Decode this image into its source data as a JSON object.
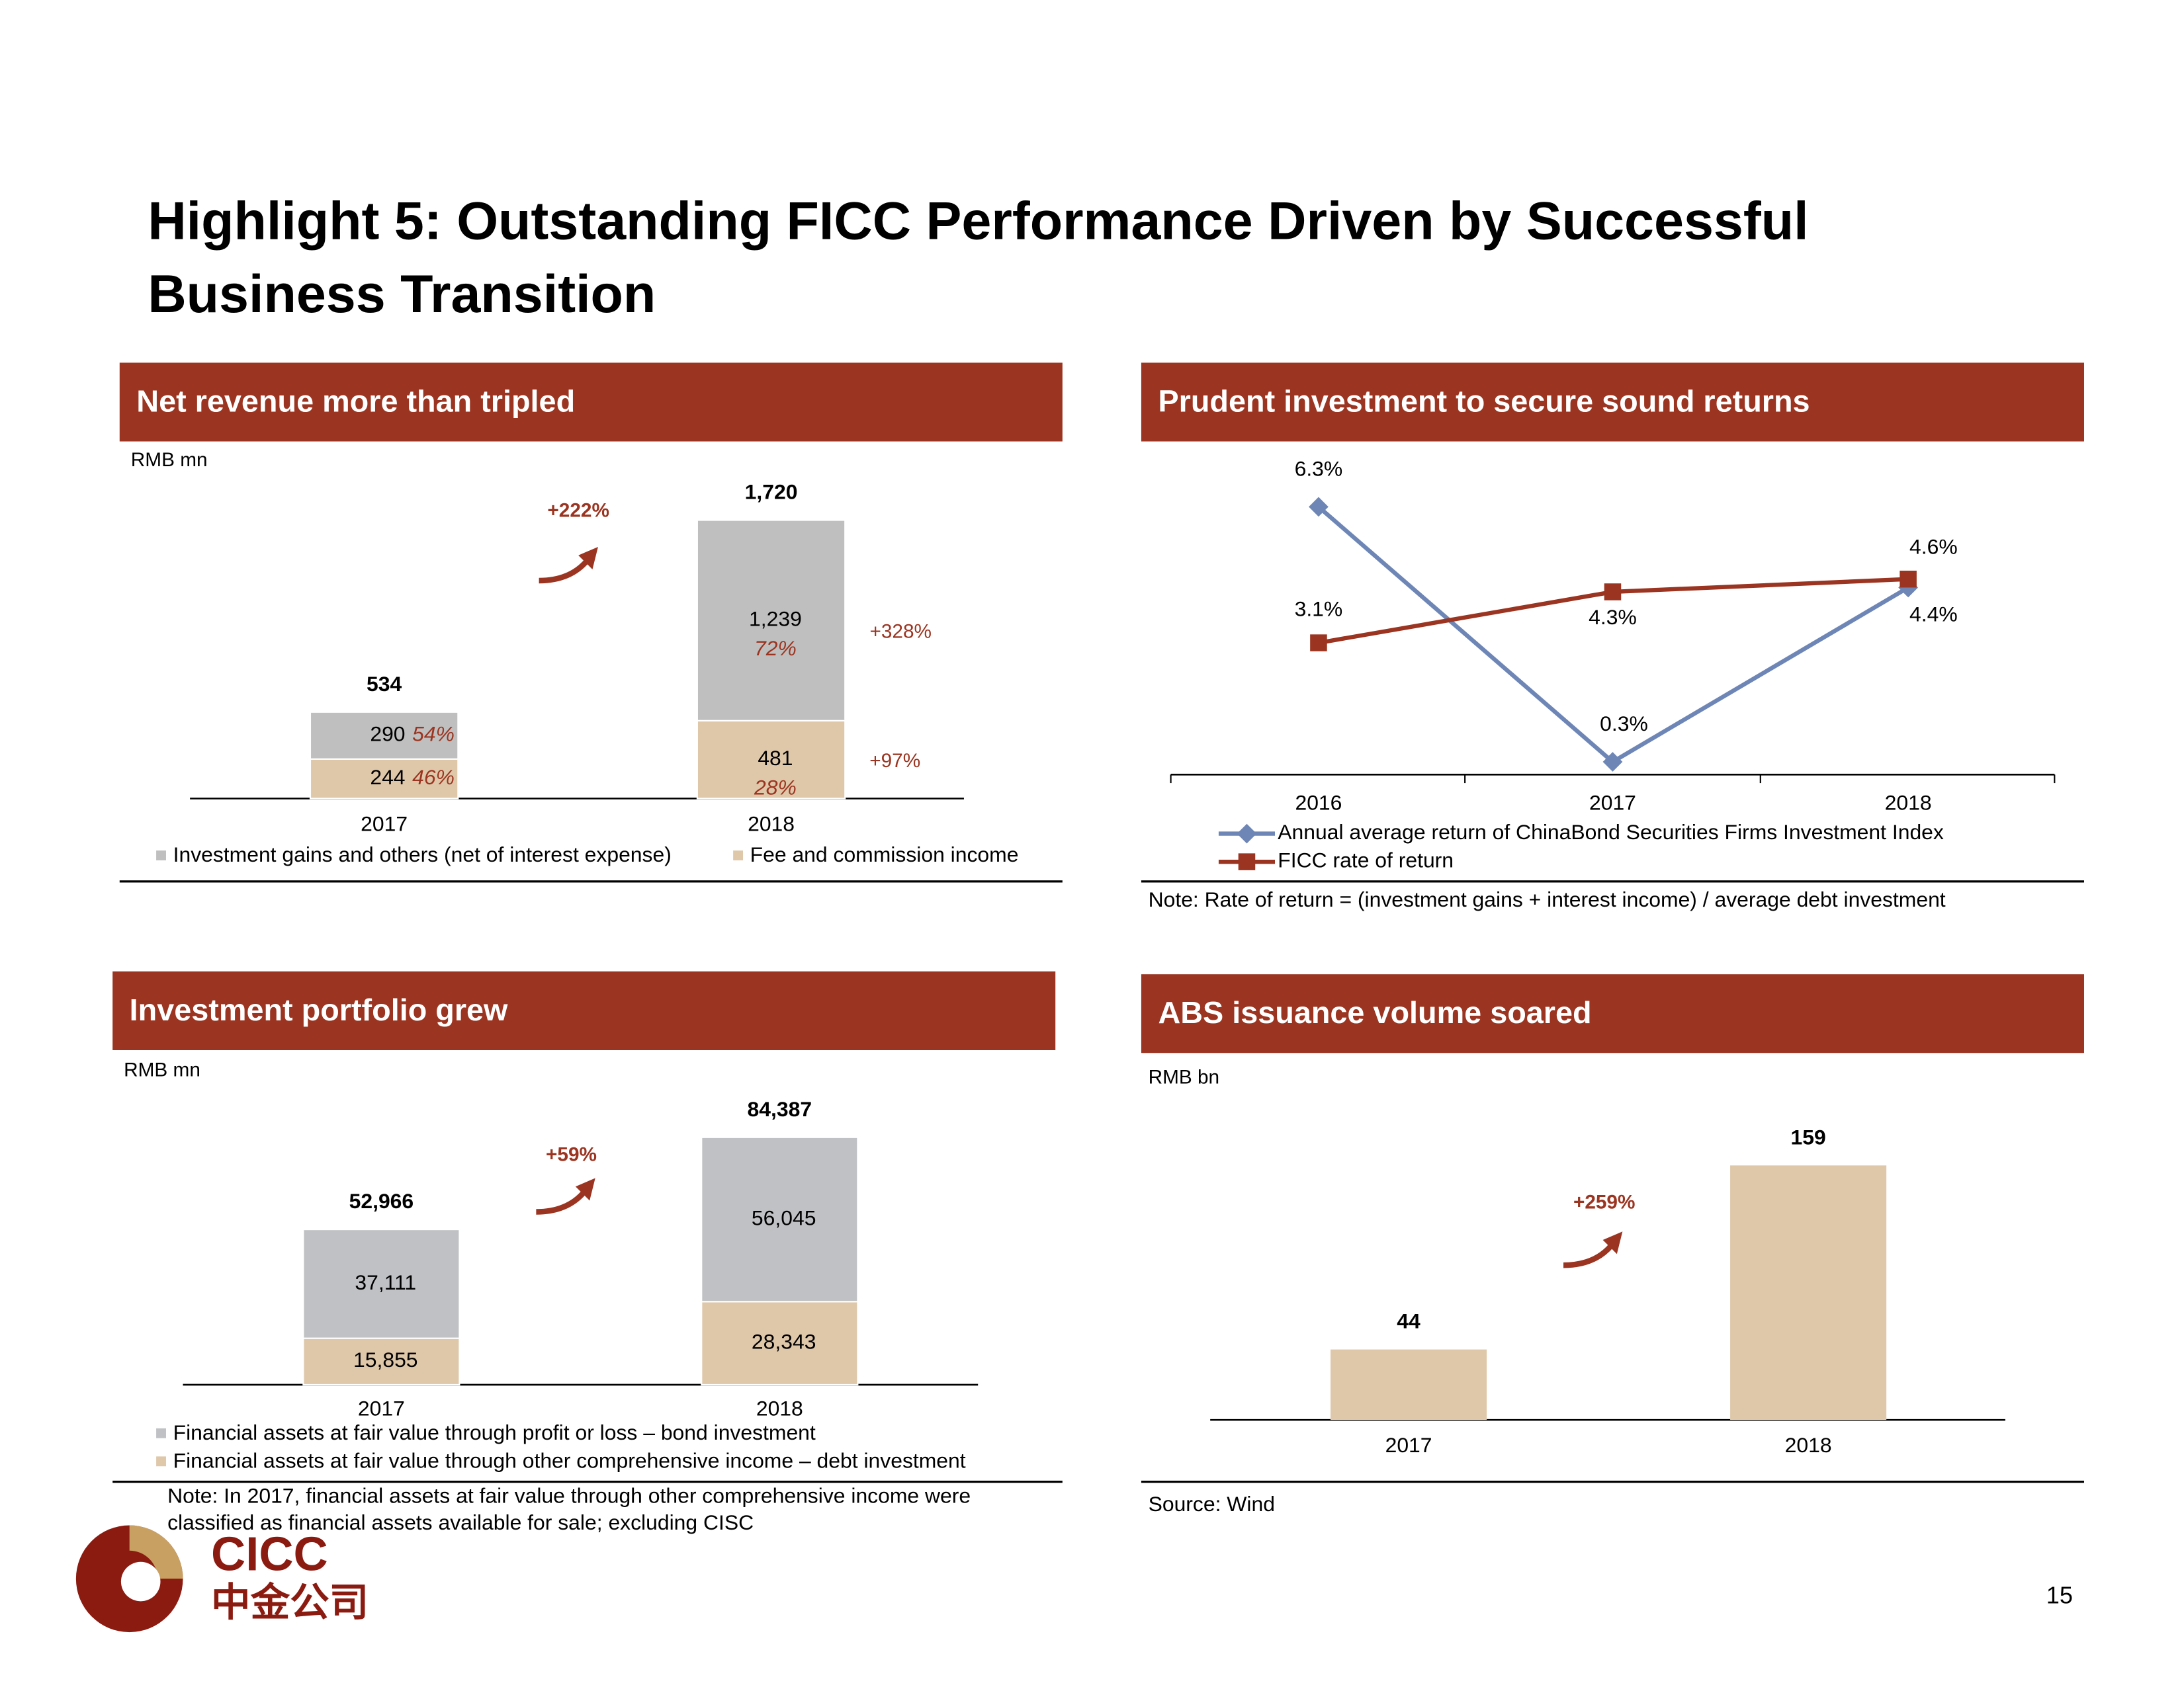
{
  "title": [
    "Highlight 5: Outstanding FICC Performance Driven by Successful",
    "Business Transition"
  ],
  "page_number": "15",
  "logo": {
    "name": "CICC",
    "chinese_name": "中金公司"
  },
  "chart_data": [
    {
      "type": "stacked_bar",
      "title": "Net revenue more than tripled",
      "unit": "RMB mn",
      "categories": [
        "2017",
        "2018"
      ],
      "series": [
        {
          "name": "Investment gains and others (net of interest expense)",
          "color": "#bfbfbf",
          "values": [
            290,
            1239
          ],
          "value_labels": [
            "290",
            "1,239"
          ],
          "share_labels": [
            "54%",
            "72%"
          ]
        },
        {
          "name": "Fee and commission income",
          "color": "#dfc8aa",
          "values": [
            244,
            481
          ],
          "share_labels": [
            "46%",
            "28%"
          ]
        }
      ],
      "totals": [
        534,
        1720
      ],
      "total_labels": [
        "534",
        "1,720"
      ],
      "annotations": [
        "+222%",
        "+328%",
        "+97%"
      ]
    },
    {
      "type": "line",
      "title": "Prudent investment to secure sound returns",
      "categories": [
        "2016",
        "2017",
        "2018"
      ],
      "series": [
        {
          "name": "Annual average return of ChinaBond Securities Firms Investment Index",
          "color": "#6d86b6",
          "marker": "diamond",
          "values": [
            6.3,
            0.3,
            4.4
          ],
          "value_labels": [
            "6.3%",
            "0.3%",
            "4.4%"
          ]
        },
        {
          "name": "FICC rate of return",
          "color": "#9b3420",
          "marker": "square",
          "values": [
            3.1,
            4.3,
            4.6
          ],
          "value_labels": [
            "3.1%",
            "4.3%",
            "4.6%"
          ]
        }
      ],
      "note": "Note: Rate of return = (investment gains + interest income) / average debt investment"
    },
    {
      "type": "stacked_bar",
      "title": "Investment portfolio grew",
      "unit": "RMB mn",
      "categories": [
        "2017",
        "2018"
      ],
      "series": [
        {
          "name": "Financial assets at fair value through profit or loss  – bond investment",
          "color": "#bfc1c4",
          "values": [
            37111,
            56045
          ],
          "value_labels": [
            "37,111",
            "56,045"
          ]
        },
        {
          "name": "Financial assets at fair value through other comprehensive income – debt investment",
          "color": "#dfc8aa",
          "values": [
            15855,
            28343
          ],
          "value_labels": [
            "15,855",
            "28,343"
          ]
        }
      ],
      "totals": [
        52966,
        84387
      ],
      "total_labels": [
        "52,966",
        "84,387"
      ],
      "annotations": [
        "+59%"
      ],
      "note": [
        "Note: In 2017, financial assets at fair value through other comprehensive income were",
        "classified as financial assets available for sale; excluding CISC"
      ]
    },
    {
      "type": "bar",
      "title": "ABS issuance volume soared",
      "unit": "RMB bn",
      "categories": [
        "2017",
        "2018"
      ],
      "values": [
        44,
        159
      ],
      "color": "#dfc8aa",
      "annotations": [
        "+259%"
      ],
      "source": "Source: Wind"
    }
  ]
}
